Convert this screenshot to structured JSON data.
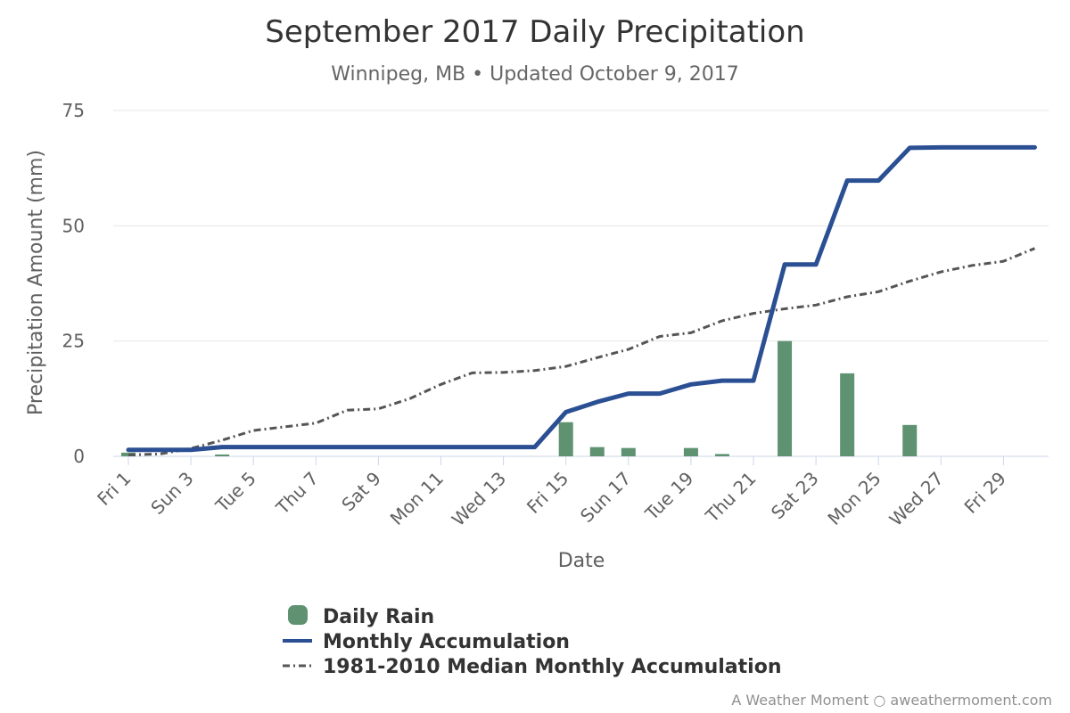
{
  "chart_data": {
    "type": "bar",
    "title": "September 2017 Daily Precipitation",
    "subtitle": "Winnipeg, MB • Updated October 9, 2017",
    "xlabel": "Date",
    "ylabel": "Precipitation Amount (mm)",
    "ylim": [
      0,
      75
    ],
    "yticks": [
      0,
      25,
      50,
      75
    ],
    "grid": true,
    "legend_position": "bottom-center",
    "x_tick_labels": [
      {
        "day": 1,
        "label": "Fri 1"
      },
      {
        "day": 3,
        "label": "Sun 3"
      },
      {
        "day": 5,
        "label": "Tue 5"
      },
      {
        "day": 7,
        "label": "Thu 7"
      },
      {
        "day": 9,
        "label": "Sat 9"
      },
      {
        "day": 11,
        "label": "Mon 11"
      },
      {
        "day": 13,
        "label": "Wed 13"
      },
      {
        "day": 15,
        "label": "Fri 15"
      },
      {
        "day": 17,
        "label": "Sun 17"
      },
      {
        "day": 19,
        "label": "Tue 19"
      },
      {
        "day": 21,
        "label": "Thu 21"
      },
      {
        "day": 23,
        "label": "Sat 23"
      },
      {
        "day": 25,
        "label": "Mon 25"
      },
      {
        "day": 27,
        "label": "Wed 27"
      },
      {
        "day": 29,
        "label": "Fri 29"
      }
    ],
    "days": [
      1,
      2,
      3,
      4,
      5,
      6,
      7,
      8,
      9,
      10,
      11,
      12,
      13,
      14,
      15,
      16,
      17,
      18,
      19,
      20,
      21,
      22,
      23,
      24,
      25,
      26,
      27,
      28,
      29,
      30
    ],
    "series": [
      {
        "name": "Daily Rain",
        "kind": "bar",
        "color": "#5e9270",
        "values": [
          0.8,
          0,
          0,
          0.4,
          0,
          0,
          0,
          0,
          0,
          0,
          0,
          0,
          0,
          0,
          7.4,
          2.0,
          1.8,
          0,
          1.8,
          0.5,
          0,
          25.0,
          0,
          18.0,
          0,
          6.8,
          0,
          0,
          0,
          0
        ]
      },
      {
        "name": "Monthly Accumulation",
        "kind": "line",
        "color": "#2b4f93",
        "values": [
          1.4,
          1.4,
          1.4,
          2.0,
          2.0,
          2.0,
          2.0,
          2.0,
          2.0,
          2.0,
          2.0,
          2.0,
          2.0,
          2.0,
          9.6,
          11.8,
          13.6,
          13.6,
          15.6,
          16.4,
          16.4,
          41.6,
          41.6,
          59.8,
          59.8,
          66.9,
          67.0,
          67.0,
          67.0,
          67.0
        ]
      },
      {
        "name": "1981-2010 Median Monthly Accumulation",
        "kind": "line",
        "dash": "dash-dot",
        "color": "#555555",
        "values": [
          0.3,
          0.5,
          1.7,
          3.5,
          5.6,
          6.4,
          7.2,
          10.0,
          10.3,
          12.5,
          15.6,
          18.1,
          18.2,
          18.6,
          19.5,
          21.4,
          23.2,
          26.0,
          26.8,
          29.4,
          31.0,
          32.0,
          32.8,
          34.6,
          35.7,
          38.0,
          40.0,
          41.4,
          42.3,
          45.1
        ]
      }
    ],
    "credit": "A Weather Moment ○ aweathermoment.com"
  }
}
